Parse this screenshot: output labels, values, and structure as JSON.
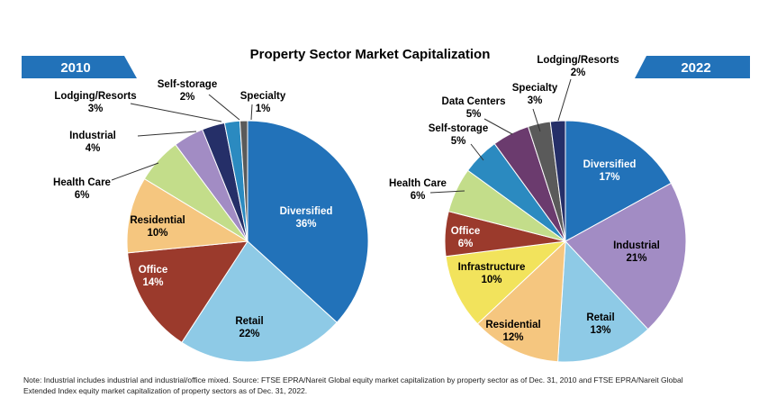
{
  "chart_data": [
    {
      "type": "pie",
      "title": "Property Sector Market Capitalization",
      "label": "2010",
      "slices": [
        {
          "name": "Diversified",
          "value": 36,
          "pct": "36%",
          "color": "#2272b9"
        },
        {
          "name": "Retail",
          "value": 22,
          "pct": "22%",
          "color": "#8ecae6"
        },
        {
          "name": "Office",
          "value": 14,
          "pct": "14%",
          "color": "#9b3a2c"
        },
        {
          "name": "Residential",
          "value": 10,
          "pct": "10%",
          "color": "#f5c67f"
        },
        {
          "name": "Health Care",
          "value": 6,
          "pct": "6%",
          "color": "#c3dd8a"
        },
        {
          "name": "Industrial",
          "value": 4,
          "pct": "4%",
          "color": "#a28cc4"
        },
        {
          "name": "Lodging/Resorts",
          "value": 3,
          "pct": "3%",
          "color": "#252f68"
        },
        {
          "name": "Self-storage",
          "value": 2,
          "pct": "2%",
          "color": "#2b8ac0"
        },
        {
          "name": "Specialty",
          "value": 1,
          "pct": "1%",
          "color": "#5a5a5a"
        }
      ]
    },
    {
      "type": "pie",
      "label": "2022",
      "slices": [
        {
          "name": "Diversified",
          "value": 17,
          "pct": "17%",
          "color": "#2272b9"
        },
        {
          "name": "Industrial",
          "value": 21,
          "pct": "21%",
          "color": "#a28cc4"
        },
        {
          "name": "Retail",
          "value": 13,
          "pct": "13%",
          "color": "#8ecae6"
        },
        {
          "name": "Residential",
          "value": 12,
          "pct": "12%",
          "color": "#f5c67f"
        },
        {
          "name": "Infrastructure",
          "value": 10,
          "pct": "10%",
          "color": "#f2e35c"
        },
        {
          "name": "Office",
          "value": 6,
          "pct": "6%",
          "color": "#9b3a2c"
        },
        {
          "name": "Health Care",
          "value": 6,
          "pct": "6%",
          "color": "#c3dd8a"
        },
        {
          "name": "Self-storage",
          "value": 5,
          "pct": "5%",
          "color": "#2b8ac0"
        },
        {
          "name": "Data Centers",
          "value": 5,
          "pct": "5%",
          "color": "#6b3b6e"
        },
        {
          "name": "Specialty",
          "value": 3,
          "pct": "3%",
          "color": "#5a5a5a"
        },
        {
          "name": "Lodging/Resorts",
          "value": 2,
          "pct": "2%",
          "color": "#252f68"
        }
      ]
    }
  ],
  "banner_color": "#2272b9",
  "note_line1": "Note: Industrial includes industrial and industrial/office mixed. Source: FTSE EPRA/Nareit Global equity market capitalization by property sector as of Dec. 31, 2010 and FTSE EPRA/Nareit Global",
  "note_line2": "Extended Index equity market capitalization of property sectors as of Dec. 31, 2022."
}
